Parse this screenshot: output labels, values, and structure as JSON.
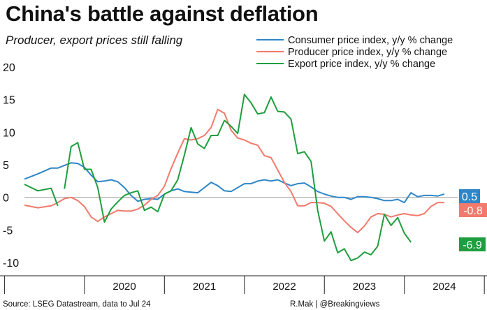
{
  "title": "China's battle against deflation",
  "subtitle": "Producer, export prices still falling",
  "source": "Source: LSEG Datastream, data to Jul 24",
  "credit": "R.Mak | @Breakingviews",
  "chart_data": {
    "type": "line",
    "x_ticks": [
      "2020",
      "2021",
      "2022",
      "2023",
      "2024"
    ],
    "y_ticks": [
      "20",
      "15",
      "10",
      "5",
      "0",
      "-5",
      "-10"
    ],
    "ylim": [
      -11,
      21
    ],
    "xlim": [
      "2019-04",
      "2024-09"
    ],
    "legend_position": "top-right",
    "grid": false,
    "series": [
      {
        "name": "Consumer price index, y/y % change",
        "color": "#2e86c8",
        "end_label": "0.5",
        "points": [
          [
            "2019-04",
            2.8
          ],
          [
            "2019-06",
            3.6
          ],
          [
            "2019-08",
            4.5
          ],
          [
            "2019-09",
            4.5
          ],
          [
            "2019-10",
            4.9
          ],
          [
            "2019-11",
            5.3
          ],
          [
            "2019-12",
            5.2
          ],
          [
            "2020-01",
            4.6
          ],
          [
            "2020-02",
            3.4
          ],
          [
            "2020-03",
            2.4
          ],
          [
            "2020-04",
            2.5
          ],
          [
            "2020-05",
            2.7
          ],
          [
            "2020-06",
            2.4
          ],
          [
            "2020-07",
            1.5
          ],
          [
            "2020-08",
            0.3
          ],
          [
            "2020-09",
            -0.6
          ],
          [
            "2020-10",
            -0.3
          ],
          [
            "2020-11",
            -0.2
          ],
          [
            "2020-12",
            -0.3
          ],
          [
            "2021-01",
            0.5
          ],
          [
            "2021-02",
            1.0
          ],
          [
            "2021-03",
            1.3
          ],
          [
            "2021-04",
            0.9
          ],
          [
            "2021-05",
            0.8
          ],
          [
            "2021-06",
            0.7
          ],
          [
            "2021-07",
            1.5
          ],
          [
            "2021-08",
            2.3
          ],
          [
            "2021-09",
            1.8
          ],
          [
            "2021-10",
            1.0
          ],
          [
            "2021-11",
            0.9
          ],
          [
            "2021-12",
            1.5
          ],
          [
            "2022-01",
            2.1
          ],
          [
            "2022-02",
            2.1
          ],
          [
            "2022-03",
            2.5
          ],
          [
            "2022-04",
            2.7
          ],
          [
            "2022-05",
            2.5
          ],
          [
            "2022-06",
            2.7
          ],
          [
            "2022-07",
            2.2
          ],
          [
            "2022-08",
            1.8
          ],
          [
            "2022-09",
            2.1
          ],
          [
            "2022-10",
            2.2
          ],
          [
            "2022-11",
            1.6
          ],
          [
            "2022-12",
            0.9
          ],
          [
            "2023-01",
            0.5
          ],
          [
            "2023-02",
            0.2
          ],
          [
            "2023-03",
            0.0
          ],
          [
            "2023-04",
            0.0
          ],
          [
            "2023-05",
            -0.3
          ],
          [
            "2023-06",
            0.1
          ],
          [
            "2023-07",
            0.1
          ],
          [
            "2023-08",
            0.0
          ],
          [
            "2023-09",
            -0.2
          ],
          [
            "2023-10",
            -0.5
          ],
          [
            "2023-11",
            -0.5
          ],
          [
            "2023-12",
            -0.3
          ],
          [
            "2024-01",
            -0.8
          ],
          [
            "2024-02",
            0.7
          ],
          [
            "2024-03",
            0.1
          ],
          [
            "2024-04",
            0.3
          ],
          [
            "2024-05",
            0.3
          ],
          [
            "2024-06",
            0.2
          ],
          [
            "2024-07",
            0.5
          ]
        ]
      },
      {
        "name": "Producer price index, y/y % change",
        "color": "#f27a6b",
        "end_label": "-0.8",
        "points": [
          [
            "2019-04",
            -1.2
          ],
          [
            "2019-06",
            -1.6
          ],
          [
            "2019-08",
            -1.3
          ],
          [
            "2019-09",
            -0.8
          ],
          [
            "2019-10",
            -0.2
          ],
          [
            "2019-11",
            0.0
          ],
          [
            "2019-12",
            -0.5
          ],
          [
            "2020-01",
            -1.4
          ],
          [
            "2020-02",
            -3.0
          ],
          [
            "2020-03",
            -3.7
          ],
          [
            "2020-04",
            -3.0
          ],
          [
            "2020-05",
            -2.5
          ],
          [
            "2020-06",
            -2.0
          ],
          [
            "2020-07",
            -2.1
          ],
          [
            "2020-08",
            -2.1
          ],
          [
            "2020-09",
            -1.8
          ],
          [
            "2020-10",
            -1.2
          ],
          [
            "2020-11",
            -0.3
          ],
          [
            "2020-12",
            0.3
          ],
          [
            "2021-01",
            1.7
          ],
          [
            "2021-02",
            4.4
          ],
          [
            "2021-03",
            6.8
          ],
          [
            "2021-04",
            9.0
          ],
          [
            "2021-05",
            8.8
          ],
          [
            "2021-06",
            9.0
          ],
          [
            "2021-07",
            9.5
          ],
          [
            "2021-08",
            10.7
          ],
          [
            "2021-09",
            13.5
          ],
          [
            "2021-10",
            12.9
          ],
          [
            "2021-11",
            10.3
          ],
          [
            "2021-12",
            9.1
          ],
          [
            "2022-01",
            8.8
          ],
          [
            "2022-02",
            8.3
          ],
          [
            "2022-03",
            8.0
          ],
          [
            "2022-04",
            6.4
          ],
          [
            "2022-05",
            6.1
          ],
          [
            "2022-06",
            4.2
          ],
          [
            "2022-07",
            2.3
          ],
          [
            "2022-08",
            0.9
          ],
          [
            "2022-09",
            -1.3
          ],
          [
            "2022-10",
            -1.3
          ],
          [
            "2022-11",
            -0.8
          ],
          [
            "2022-12",
            -0.8
          ],
          [
            "2023-01",
            -0.9
          ],
          [
            "2023-02",
            -1.4
          ],
          [
            "2023-03",
            -2.5
          ],
          [
            "2023-04",
            -3.6
          ],
          [
            "2023-05",
            -4.6
          ],
          [
            "2023-06",
            -5.4
          ],
          [
            "2023-07",
            -4.4
          ],
          [
            "2023-08",
            -3.0
          ],
          [
            "2023-09",
            -2.5
          ],
          [
            "2023-10",
            -2.6
          ],
          [
            "2023-11",
            -3.0
          ],
          [
            "2023-12",
            -2.7
          ],
          [
            "2024-01",
            -2.5
          ],
          [
            "2024-02",
            -2.7
          ],
          [
            "2024-03",
            -2.8
          ],
          [
            "2024-04",
            -2.5
          ],
          [
            "2024-05",
            -1.4
          ],
          [
            "2024-06",
            -0.8
          ],
          [
            "2024-07",
            -0.8
          ]
        ]
      },
      {
        "name": "Export price index, y/y % change",
        "color": "#1e9e3e",
        "end_label": "-6.9",
        "points": [
          [
            "2019-04",
            2.0
          ],
          [
            "2019-06",
            1.0
          ],
          [
            "2019-08",
            1.4
          ],
          [
            "2019-09",
            -1.3
          ],
          null,
          [
            "2019-10",
            1.3
          ],
          [
            "2019-11",
            7.8
          ],
          [
            "2019-12",
            8.4
          ],
          [
            "2020-01",
            4.3
          ],
          [
            "2020-02",
            4.3
          ],
          [
            "2020-03",
            1.5
          ],
          [
            "2020-04",
            -3.8
          ],
          [
            "2020-05",
            -1.8
          ],
          [
            "2020-06",
            -0.7
          ],
          [
            "2020-07",
            0.3
          ],
          [
            "2020-08",
            0.7
          ],
          [
            "2020-09",
            1.0
          ],
          [
            "2020-10",
            -2.0
          ],
          [
            "2020-11",
            -1.5
          ],
          [
            "2020-12",
            -2.2
          ],
          [
            "2021-01",
            0.5
          ],
          [
            "2021-02",
            1.0
          ],
          [
            "2021-03",
            2.7
          ],
          [
            "2021-04",
            6.5
          ],
          [
            "2021-05",
            10.7
          ],
          [
            "2021-06",
            8.2
          ],
          [
            "2021-07",
            7.5
          ],
          [
            "2021-08",
            9.5
          ],
          [
            "2021-09",
            9.5
          ],
          [
            "2021-10",
            11.8
          ],
          [
            "2021-11",
            10.9
          ],
          [
            "2021-12",
            9.8
          ],
          [
            "2022-01",
            15.8
          ],
          [
            "2022-02",
            14.5
          ],
          [
            "2022-03",
            12.8
          ],
          [
            "2022-04",
            13.0
          ],
          [
            "2022-05",
            15.4
          ],
          [
            "2022-06",
            13.2
          ],
          [
            "2022-07",
            13.1
          ],
          [
            "2022-08",
            12.0
          ],
          [
            "2022-09",
            6.7
          ],
          [
            "2022-10",
            7.0
          ],
          [
            "2022-11",
            5.5
          ],
          [
            "2022-12",
            -2.0
          ],
          [
            "2023-01",
            -6.7
          ],
          [
            "2023-02",
            -5.3
          ],
          [
            "2023-03",
            -8.5
          ],
          [
            "2023-04",
            -7.9
          ],
          [
            "2023-05",
            -9.7
          ],
          [
            "2023-06",
            -9.3
          ],
          [
            "2023-07",
            -8.4
          ],
          [
            "2023-08",
            -8.8
          ],
          [
            "2023-09",
            -7.5
          ],
          [
            "2023-10",
            -2.6
          ],
          [
            "2023-11",
            -4.3
          ],
          [
            "2023-12",
            -3.1
          ],
          [
            "2024-01",
            -5.5
          ],
          [
            "2024-02",
            -6.9
          ]
        ]
      }
    ]
  }
}
